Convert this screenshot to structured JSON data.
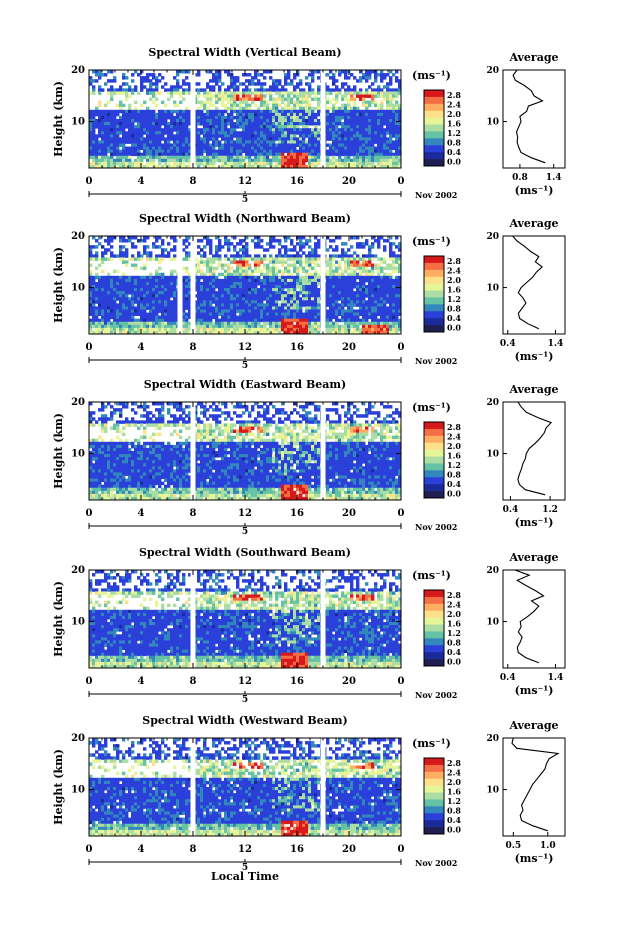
{
  "figure": {
    "x_axis_title": "Local Time",
    "y_axis_title": "Height (km)",
    "date_label": "Nov 2002",
    "day_label": "5",
    "unit_label": "(ms⁻¹)",
    "avg_title": "Average",
    "avg_unit_label": "(ms⁻¹)"
  },
  "colorbar": {
    "ticks": [
      "2.8",
      "2.4",
      "2.0",
      "1.6",
      "1.2",
      "0.8",
      "0.4",
      "0.0"
    ],
    "colors": [
      "#d7191c",
      "#f46d43",
      "#fdae61",
      "#fee08b",
      "#e6f598",
      "#abdda4",
      "#66c2a5",
      "#3288bd",
      "#2b3fd9",
      "#1a2a9a",
      "#1e1e50"
    ]
  },
  "chart_data": [
    {
      "type": "heatmap",
      "title": "Spectral Width (Vertical Beam)",
      "xlabel": "",
      "ylabel": "Height (km)",
      "xticks": [
        "0",
        "4",
        "8",
        "12",
        "16",
        "20",
        "0"
      ],
      "yticks": [
        "20",
        "10"
      ],
      "xlim": [
        0,
        24
      ],
      "ylim": [
        1,
        20
      ],
      "data_gaps_hours": [
        8,
        18
      ],
      "profile": {
        "title": "Average",
        "xlabel": "(ms⁻¹)",
        "xticks": [
          "0.8",
          "1.4"
        ],
        "xlim": [
          0.5,
          1.6
        ],
        "yticks": [
          "20",
          "10"
        ],
        "heights": [
          2,
          3,
          4,
          5,
          6,
          7,
          8,
          9,
          10,
          11,
          12,
          13,
          14,
          15,
          16,
          17,
          18,
          19,
          20
        ],
        "values": [
          1.25,
          1.0,
          0.82,
          0.78,
          0.75,
          0.76,
          0.74,
          0.78,
          0.82,
          0.8,
          0.92,
          0.95,
          1.2,
          1.05,
          1.0,
          0.88,
          0.72,
          0.68,
          0.75
        ]
      }
    },
    {
      "type": "heatmap",
      "title": "Spectral Width (Northward Beam)",
      "xlabel": "",
      "ylabel": "Height (km)",
      "xticks": [
        "0",
        "4",
        "8",
        "12",
        "16",
        "20",
        "0"
      ],
      "yticks": [
        "20",
        "10"
      ],
      "xlim": [
        0,
        24
      ],
      "ylim": [
        1,
        20
      ],
      "data_gaps_hours": [
        7,
        8,
        18
      ],
      "profile": {
        "title": "Average",
        "xlabel": "(ms⁻¹)",
        "xticks": [
          "0.4",
          "1.4"
        ],
        "xlim": [
          0.3,
          1.6
        ],
        "yticks": [
          "20",
          "10"
        ],
        "heights": [
          2,
          3,
          4,
          5,
          6,
          7,
          8,
          9,
          10,
          11,
          12,
          13,
          14,
          15,
          16,
          17,
          18,
          19,
          20
        ],
        "values": [
          1.05,
          0.82,
          0.65,
          0.62,
          0.7,
          0.78,
          0.72,
          0.62,
          0.68,
          0.8,
          0.92,
          1.0,
          1.12,
          0.98,
          1.05,
          0.88,
          0.75,
          0.6,
          0.5
        ]
      }
    },
    {
      "type": "heatmap",
      "title": "Spectral Width (Eastward Beam)",
      "xlabel": "",
      "ylabel": "Height (km)",
      "xticks": [
        "0",
        "4",
        "8",
        "12",
        "16",
        "20",
        "0"
      ],
      "yticks": [
        "20",
        "10"
      ],
      "xlim": [
        0,
        24
      ],
      "ylim": [
        1,
        20
      ],
      "data_gaps_hours": [
        8,
        18
      ],
      "profile": {
        "title": "Average",
        "xlabel": "(ms⁻¹)",
        "xticks": [
          "0.4",
          "1.2"
        ],
        "xlim": [
          0.25,
          1.5
        ],
        "yticks": [
          "20",
          "10"
        ],
        "heights": [
          2,
          3,
          4,
          5,
          6,
          7,
          8,
          9,
          10,
          11,
          12,
          13,
          14,
          15,
          16,
          17,
          18,
          19,
          20
        ],
        "values": [
          1.1,
          0.7,
          0.58,
          0.55,
          0.58,
          0.62,
          0.65,
          0.7,
          0.72,
          0.78,
          0.9,
          1.0,
          1.08,
          1.12,
          1.22,
          0.95,
          0.72,
          0.62,
          0.55
        ]
      }
    },
    {
      "type": "heatmap",
      "title": "Spectral Width (Southward Beam)",
      "xlabel": "",
      "ylabel": "Height (km)",
      "xticks": [
        "0",
        "4",
        "8",
        "12",
        "16",
        "20",
        "0"
      ],
      "yticks": [
        "20",
        "10"
      ],
      "xlim": [
        0,
        24
      ],
      "ylim": [
        1,
        20
      ],
      "data_gaps_hours": [
        8,
        18
      ],
      "profile": {
        "title": "Average",
        "xlabel": "(ms⁻¹)",
        "xticks": [
          "0.4",
          "1.4"
        ],
        "xlim": [
          0.3,
          1.6
        ],
        "yticks": [
          "20",
          "10"
        ],
        "heights": [
          2,
          3,
          4,
          5,
          6,
          7,
          8,
          9,
          10,
          11,
          12,
          13,
          14,
          15,
          16,
          17,
          18,
          19,
          20
        ],
        "values": [
          1.05,
          0.78,
          0.62,
          0.6,
          0.66,
          0.7,
          0.62,
          0.68,
          0.66,
          0.82,
          0.95,
          1.05,
          0.9,
          1.15,
          0.98,
          0.78,
          0.6,
          0.85,
          0.55
        ]
      }
    },
    {
      "type": "heatmap",
      "title": "Spectral Width (Westward Beam)",
      "xlabel": "Local Time",
      "ylabel": "Height (km)",
      "xticks": [
        "0",
        "4",
        "8",
        "12",
        "16",
        "20",
        "0"
      ],
      "yticks": [
        "20",
        "10"
      ],
      "xlim": [
        0,
        24
      ],
      "ylim": [
        1,
        20
      ],
      "data_gaps_hours": [
        8,
        18
      ],
      "profile": {
        "title": "Average",
        "xlabel": "(ms⁻¹)",
        "xticks": [
          "0.5",
          "1.0"
        ],
        "xlim": [
          0.35,
          1.25
        ],
        "yticks": [
          "20",
          "10"
        ],
        "heights": [
          2,
          3,
          4,
          5,
          6,
          7,
          8,
          9,
          10,
          11,
          12,
          13,
          14,
          15,
          16,
          17,
          18,
          19,
          20
        ],
        "values": [
          1.0,
          0.78,
          0.62,
          0.6,
          0.64,
          0.62,
          0.66,
          0.7,
          0.74,
          0.78,
          0.84,
          0.9,
          0.96,
          0.98,
          1.02,
          1.15,
          0.55,
          0.48,
          0.5
        ]
      }
    }
  ]
}
